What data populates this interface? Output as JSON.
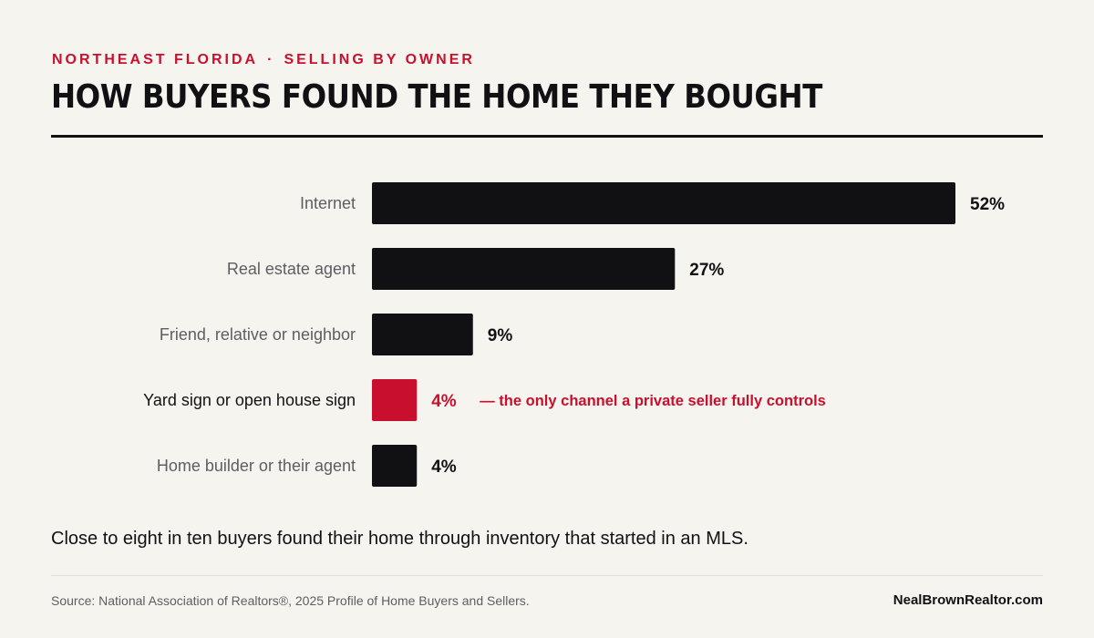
{
  "header": {
    "kicker_region": "NORTHEAST FLORIDA",
    "kicker_separator": "·",
    "kicker_topic": "SELLING BY OWNER",
    "title": "HOW BUYERS FOUND THE HOME THEY BOUGHT"
  },
  "chart_data": {
    "type": "bar",
    "orientation": "horizontal",
    "categories": [
      "Internet",
      "Real estate agent",
      "Friend, relative or neighbor",
      "Yard sign or open house sign",
      "Home builder or their agent"
    ],
    "values": [
      52,
      27,
      9,
      4,
      4
    ],
    "value_labels": [
      "52%",
      "27%",
      "9%",
      "4%",
      "4%"
    ],
    "highlight_index": 3,
    "highlight_annotation": "— the only channel a private seller fully controls",
    "xlim": [
      0,
      52
    ],
    "grid": false,
    "colors": {
      "bar": "#111114",
      "highlight": "#c8102e",
      "label": "#5d5d62"
    }
  },
  "caption": "Close to eight in ten buyers found their home through inventory that started in an MLS.",
  "footer": {
    "source": "Source: National Association of Realtors®, 2025 Profile of Home Buyers and Sellers.",
    "site": "NealBrownRealtor.com"
  }
}
